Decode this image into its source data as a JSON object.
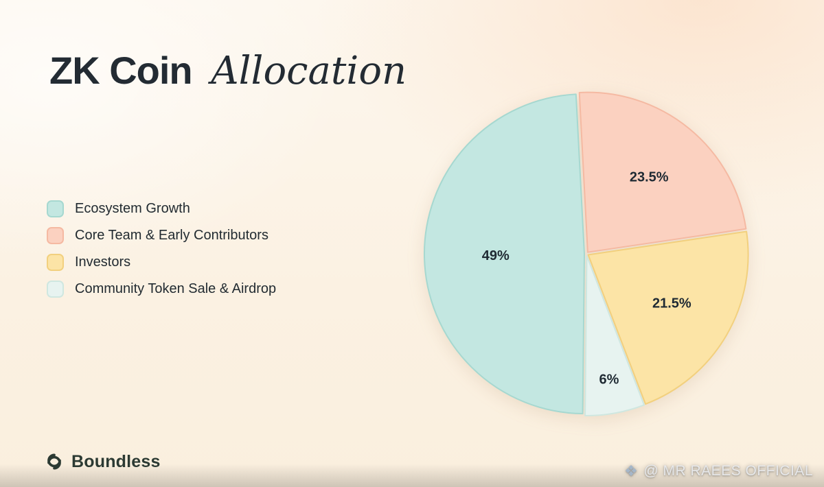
{
  "page": {
    "title_main": "ZK Coin",
    "title_accent": "Allocation"
  },
  "chart_data": {
    "type": "pie",
    "title": "ZK Coin Allocation",
    "start_angle_deg": -179.4,
    "legend_position": "left",
    "value_label_color": "#1f2a33",
    "slices": [
      {
        "label": "Ecosystem Growth",
        "value": 49,
        "display": "49%",
        "color": "#c3e7e1",
        "border_color": "#a6d8d0"
      },
      {
        "label": "Core Team & Early Contributors",
        "value": 23.5,
        "display": "23.5%",
        "color": "#fbd1c0",
        "border_color": "#f5b9a2"
      },
      {
        "label": "Investors",
        "value": 21.5,
        "display": "21.5%",
        "color": "#fce4a6",
        "border_color": "#f2d07e"
      },
      {
        "label": "Community Token Sale & Airdrop",
        "value": 6,
        "display": "6%",
        "color": "#e7f3f0",
        "border_color": "#cfe7e0"
      }
    ]
  },
  "footer": {
    "brand": "Boundless",
    "watermark": "@ MR RAEES OFFICIAL",
    "watermark_icon": "❖"
  }
}
